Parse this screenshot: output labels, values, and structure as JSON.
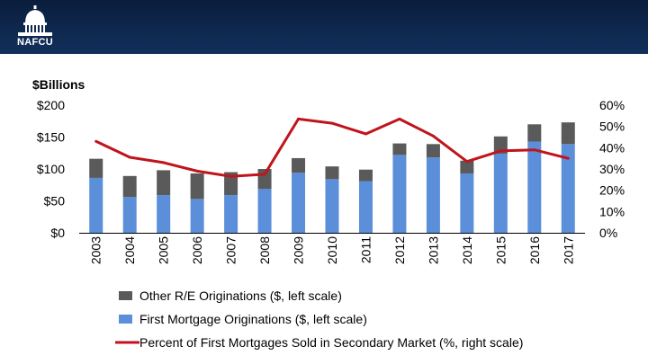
{
  "brand": {
    "name": "NAFCU",
    "banner_color": "#0f2850"
  },
  "colors": {
    "first_mortgage": "#5b8fd9",
    "other_re": "#5a5a5a",
    "percent_line": "#c0141c"
  },
  "chart_data": {
    "type": "bar",
    "stacked": true,
    "title": "",
    "units_label": "$Billions",
    "categories": [
      "2003",
      "2004",
      "2005",
      "2006",
      "2007",
      "2008",
      "2009",
      "2010",
      "2011",
      "2012",
      "2013",
      "2014",
      "2015",
      "2016",
      "2017"
    ],
    "series": [
      {
        "name": "First Mortgage Originations ($, left scale)",
        "axis": "left",
        "color": "#5b8fd9",
        "values": [
          86,
          56,
          59,
          53,
          59,
          69,
          94,
          84,
          81,
          122,
          118,
          93,
          124,
          143,
          139
        ]
      },
      {
        "name": "Other R/E Originations ($, left scale)",
        "axis": "left",
        "color": "#5a5a5a",
        "values": [
          30,
          33,
          39,
          40,
          36,
          31,
          23,
          20,
          18,
          18,
          21,
          20,
          27,
          27,
          34
        ]
      },
      {
        "name": "Percent of First Mortgages Sold in Secondary Market (%, right scale)",
        "axis": "right",
        "type": "line",
        "color": "#c0141c",
        "values": [
          43,
          35.5,
          33,
          29,
          26.5,
          27.5,
          53.5,
          51.5,
          46.5,
          53.5,
          45.5,
          33.5,
          38.5,
          39,
          35
        ]
      }
    ],
    "left_axis": {
      "ylim": [
        0,
        200
      ],
      "ticks": [
        "$0",
        "$50",
        "$100",
        "$150",
        "$200"
      ],
      "tick_values": [
        0,
        50,
        100,
        150,
        200
      ]
    },
    "right_axis": {
      "ylim": [
        0,
        60
      ],
      "ticks": [
        "0%",
        "10%",
        "20%",
        "30%",
        "40%",
        "50%",
        "60%"
      ],
      "tick_values": [
        0,
        10,
        20,
        30,
        40,
        50,
        60
      ]
    },
    "legend_order": [
      1,
      0,
      2
    ],
    "legend_position": "bottom-left",
    "grid": false
  }
}
